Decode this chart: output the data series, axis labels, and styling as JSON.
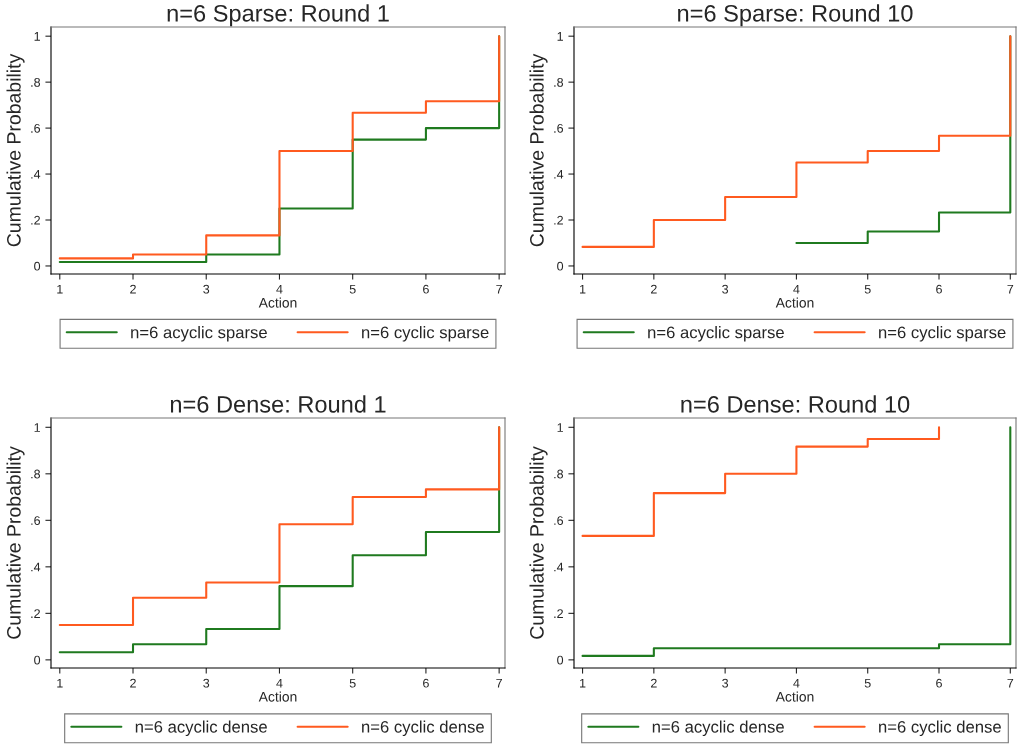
{
  "chart_data": [
    {
      "type": "step",
      "title": "n=6 Sparse: Round 1",
      "xlabel": "Action",
      "ylabel": "Cumulative Probability",
      "xlim": [
        0.88,
        7.08
      ],
      "xticks": [
        1,
        2,
        3,
        4,
        5,
        6,
        7
      ],
      "ylim": [
        -0.035,
        1.04
      ],
      "yticks": [
        0,
        {
          "value": 0.2,
          "label": ".2"
        },
        {
          "value": 0.4,
          "label": ".4"
        },
        {
          "value": 0.6,
          "label": ".6"
        },
        {
          "value": 0.8,
          "label": ".8"
        },
        1
      ],
      "legend": "bottom",
      "grid": false,
      "series": [
        {
          "name": "n=6 acyclic sparse",
          "color": "#1f7a1f",
          "x": [
            1,
            2,
            3,
            4,
            5,
            6,
            7
          ],
          "values": [
            0.017,
            0.017,
            0.05,
            0.25,
            0.55,
            0.6,
            1
          ]
        },
        {
          "name": "n=6 cyclic sparse",
          "color": "#ff5a1f",
          "x": [
            1,
            2,
            3,
            4,
            5,
            6,
            7
          ],
          "values": [
            0.033,
            0.05,
            0.133,
            0.5,
            0.667,
            0.717,
            1
          ]
        }
      ]
    },
    {
      "type": "step",
      "title": "n=6 Sparse: Round 10",
      "xlabel": "Action",
      "ylabel": "Cumulative Probability",
      "xlim": [
        0.88,
        7.08
      ],
      "xticks": [
        1,
        2,
        3,
        4,
        5,
        6,
        7
      ],
      "ylim": [
        -0.035,
        1.04
      ],
      "yticks": [
        0,
        {
          "value": 0.2,
          "label": ".2"
        },
        {
          "value": 0.4,
          "label": ".4"
        },
        {
          "value": 0.6,
          "label": ".6"
        },
        {
          "value": 0.8,
          "label": ".8"
        },
        1
      ],
      "legend": "bottom",
      "grid": false,
      "series": [
        {
          "name": "n=6 acyclic sparse",
          "color": "#1f7a1f",
          "x": [
            4,
            5,
            6,
            7
          ],
          "values": [
            0.1,
            0.15,
            0.233,
            1
          ]
        },
        {
          "name": "n=6 cyclic sparse",
          "color": "#ff5a1f",
          "x": [
            1,
            2,
            3,
            4,
            5,
            6,
            7
          ],
          "values": [
            0.083,
            0.2,
            0.3,
            0.45,
            0.5,
            0.567,
            1
          ]
        }
      ]
    },
    {
      "type": "step",
      "title": "n=6 Dense: Round 1",
      "xlabel": "Action",
      "ylabel": "Cumulative Probability",
      "xlim": [
        0.88,
        7.08
      ],
      "xticks": [
        1,
        2,
        3,
        4,
        5,
        6,
        7
      ],
      "ylim": [
        -0.035,
        1.04
      ],
      "yticks": [
        0,
        {
          "value": 0.2,
          "label": ".2"
        },
        {
          "value": 0.4,
          "label": ".4"
        },
        {
          "value": 0.6,
          "label": ".6"
        },
        {
          "value": 0.8,
          "label": ".8"
        },
        1
      ],
      "legend": "bottom",
      "grid": false,
      "series": [
        {
          "name": "n=6 acyclic dense",
          "color": "#1f7a1f",
          "x": [
            1,
            2,
            3,
            4,
            5,
            6,
            7
          ],
          "values": [
            0.033,
            0.067,
            0.133,
            0.317,
            0.45,
            0.55,
            1
          ]
        },
        {
          "name": "n=6 cyclic dense",
          "color": "#ff5a1f",
          "x": [
            1,
            2,
            3,
            4,
            5,
            6,
            7
          ],
          "values": [
            0.15,
            0.267,
            0.333,
            0.583,
            0.7,
            0.733,
            1
          ]
        }
      ]
    },
    {
      "type": "step",
      "title": "n=6 Dense: Round 10",
      "xlabel": "Action",
      "ylabel": "Cumulative Probability",
      "xlim": [
        0.88,
        7.08
      ],
      "xticks": [
        1,
        2,
        3,
        4,
        5,
        6,
        7
      ],
      "ylim": [
        -0.035,
        1.04
      ],
      "yticks": [
        0,
        {
          "value": 0.2,
          "label": ".2"
        },
        {
          "value": 0.4,
          "label": ".4"
        },
        {
          "value": 0.6,
          "label": ".6"
        },
        {
          "value": 0.8,
          "label": ".8"
        },
        1
      ],
      "legend": "bottom",
      "grid": false,
      "series": [
        {
          "name": "n=6 acyclic dense",
          "color": "#1f7a1f",
          "x": [
            1,
            2,
            3,
            4,
            5,
            6,
            7
          ],
          "values": [
            0.017,
            0.05,
            0.05,
            0.05,
            0.05,
            0.067,
            1
          ]
        },
        {
          "name": "n=6 cyclic dense",
          "color": "#ff5a1f",
          "x": [
            1,
            2,
            3,
            4,
            5,
            6
          ],
          "values": [
            0.533,
            0.717,
            0.8,
            0.917,
            0.95,
            1
          ]
        }
      ]
    }
  ]
}
